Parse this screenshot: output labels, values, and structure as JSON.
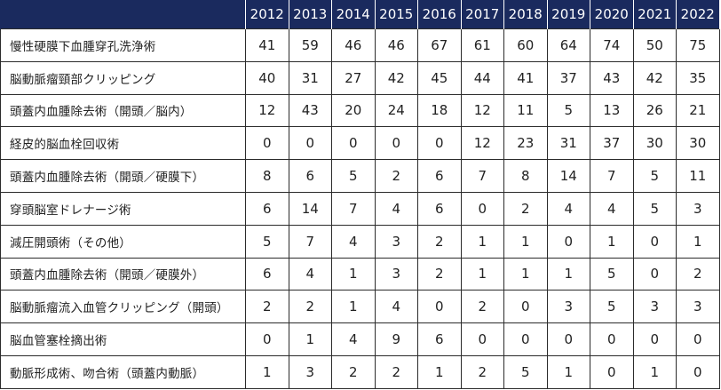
{
  "table": {
    "years": [
      "2012",
      "2013",
      "2014",
      "2015",
      "2016",
      "2017",
      "2018",
      "2019",
      "2020",
      "2021",
      "2022"
    ],
    "rows": [
      {
        "label": "慢性硬膜下血腫穿孔洗浄術",
        "values": [
          "41",
          "59",
          "46",
          "46",
          "67",
          "61",
          "60",
          "64",
          "74",
          "50",
          "75"
        ]
      },
      {
        "label": "脳動脈瘤頸部クリッピング",
        "values": [
          "40",
          "31",
          "27",
          "42",
          "45",
          "44",
          "41",
          "37",
          "43",
          "42",
          "35"
        ]
      },
      {
        "label": "頭蓋内血腫除去術（開頭／脳内）",
        "values": [
          "12",
          "43",
          "20",
          "24",
          "18",
          "12",
          "11",
          "5",
          "13",
          "26",
          "21"
        ]
      },
      {
        "label": "経皮的脳血栓回収術",
        "values": [
          "0",
          "0",
          "0",
          "0",
          "0",
          "12",
          "23",
          "31",
          "37",
          "30",
          "30"
        ]
      },
      {
        "label": "頭蓋内血腫除去術（開頭／硬膜下）",
        "values": [
          "8",
          "6",
          "5",
          "2",
          "6",
          "7",
          "8",
          "14",
          "7",
          "5",
          "11"
        ]
      },
      {
        "label": "穿頭脳室ドレナージ術",
        "values": [
          "6",
          "14",
          "7",
          "4",
          "6",
          "0",
          "2",
          "4",
          "4",
          "5",
          "3"
        ]
      },
      {
        "label": "減圧開頭術（その他）",
        "values": [
          "5",
          "7",
          "4",
          "3",
          "2",
          "1",
          "1",
          "0",
          "1",
          "0",
          "1"
        ]
      },
      {
        "label": "頭蓋内血腫除去術（開頭／硬膜外）",
        "values": [
          "6",
          "4",
          "1",
          "3",
          "2",
          "1",
          "1",
          "1",
          "5",
          "0",
          "2"
        ]
      },
      {
        "label": "脳動脈瘤流入血管クリッピング（開頭）",
        "values": [
          "2",
          "2",
          "1",
          "4",
          "0",
          "2",
          "0",
          "3",
          "5",
          "3",
          "3"
        ]
      },
      {
        "label": "脳血管塞栓摘出術",
        "values": [
          "0",
          "1",
          "4",
          "9",
          "6",
          "0",
          "0",
          "0",
          "0",
          "0",
          "0"
        ]
      },
      {
        "label": "動脈形成術、吻合術（頭蓋内動脈）",
        "values": [
          "1",
          "3",
          "2",
          "2",
          "1",
          "2",
          "5",
          "1",
          "0",
          "1",
          "0"
        ]
      }
    ]
  },
  "colors": {
    "header_bg": "#1a2a5e",
    "header_text": "#ffffff",
    "border": "#2b2b2b"
  }
}
